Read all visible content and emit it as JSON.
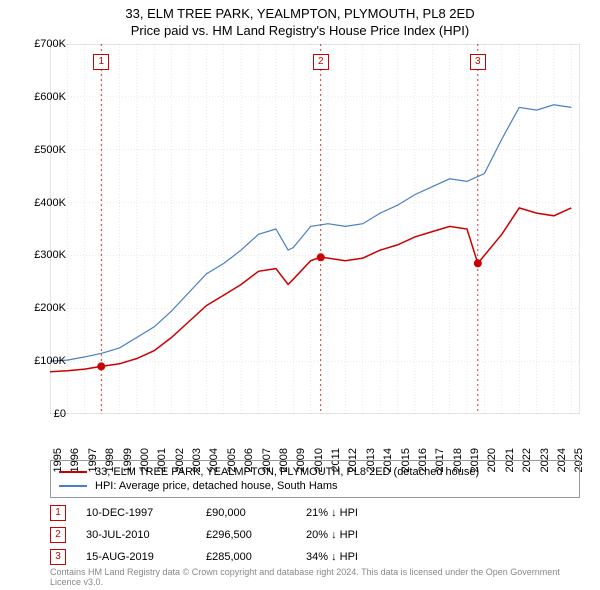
{
  "title": {
    "line1": "33, ELM TREE PARK, YEALMPTON, PLYMOUTH, PL8 2ED",
    "line2": "Price paid vs. HM Land Registry's House Price Index (HPI)"
  },
  "chart": {
    "type": "line",
    "background_color": "#ffffff",
    "grid_color": "#d0d0d0",
    "xlim": [
      1995,
      2025.5
    ],
    "ylim": [
      0,
      700000
    ],
    "ytick_step": 100000,
    "ytick_labels": [
      "£0",
      "£100K",
      "£200K",
      "£300K",
      "£400K",
      "£500K",
      "£600K",
      "£700K"
    ],
    "xtick_step": 1,
    "xtick_labels": [
      "1995",
      "1996",
      "1997",
      "1998",
      "1999",
      "2000",
      "2001",
      "2002",
      "2003",
      "2004",
      "2005",
      "2006",
      "2007",
      "2008",
      "2009",
      "2010",
      "2011",
      "2012",
      "2013",
      "2014",
      "2015",
      "2016",
      "2017",
      "2018",
      "2019",
      "2020",
      "2021",
      "2022",
      "2023",
      "2024",
      "2025"
    ],
    "series": [
      {
        "name": "property",
        "color": "#cc0000",
        "width": 1.5,
        "data": [
          [
            1995,
            80000
          ],
          [
            1996,
            82000
          ],
          [
            1997,
            85000
          ],
          [
            1997.95,
            90000
          ],
          [
            1999,
            95000
          ],
          [
            2000,
            105000
          ],
          [
            2001,
            120000
          ],
          [
            2002,
            145000
          ],
          [
            2003,
            175000
          ],
          [
            2004,
            205000
          ],
          [
            2005,
            225000
          ],
          [
            2006,
            245000
          ],
          [
            2007,
            270000
          ],
          [
            2008,
            275000
          ],
          [
            2008.7,
            245000
          ],
          [
            2009,
            255000
          ],
          [
            2010,
            290000
          ],
          [
            2010.58,
            296500
          ],
          [
            2011,
            295000
          ],
          [
            2012,
            290000
          ],
          [
            2013,
            295000
          ],
          [
            2014,
            310000
          ],
          [
            2015,
            320000
          ],
          [
            2016,
            335000
          ],
          [
            2017,
            345000
          ],
          [
            2018,
            355000
          ],
          [
            2019,
            350000
          ],
          [
            2019.62,
            285000
          ],
          [
            2020,
            300000
          ],
          [
            2021,
            340000
          ],
          [
            2022,
            390000
          ],
          [
            2023,
            380000
          ],
          [
            2024,
            375000
          ],
          [
            2025,
            390000
          ]
        ]
      },
      {
        "name": "hpi",
        "color": "#4a7ec8",
        "width": 1.2,
        "data": [
          [
            1995,
            100000
          ],
          [
            1996,
            102000
          ],
          [
            1997,
            108000
          ],
          [
            1998,
            115000
          ],
          [
            1999,
            125000
          ],
          [
            2000,
            145000
          ],
          [
            2001,
            165000
          ],
          [
            2002,
            195000
          ],
          [
            2003,
            230000
          ],
          [
            2004,
            265000
          ],
          [
            2005,
            285000
          ],
          [
            2006,
            310000
          ],
          [
            2007,
            340000
          ],
          [
            2008,
            350000
          ],
          [
            2008.7,
            310000
          ],
          [
            2009,
            315000
          ],
          [
            2010,
            355000
          ],
          [
            2011,
            360000
          ],
          [
            2012,
            355000
          ],
          [
            2013,
            360000
          ],
          [
            2014,
            380000
          ],
          [
            2015,
            395000
          ],
          [
            2016,
            415000
          ],
          [
            2017,
            430000
          ],
          [
            2018,
            445000
          ],
          [
            2019,
            440000
          ],
          [
            2020,
            455000
          ],
          [
            2021,
            520000
          ],
          [
            2022,
            580000
          ],
          [
            2023,
            575000
          ],
          [
            2024,
            585000
          ],
          [
            2025,
            580000
          ]
        ]
      }
    ],
    "vlines": [
      {
        "x": 1997.95,
        "label": "1",
        "color": "#cc0000"
      },
      {
        "x": 2010.58,
        "label": "2",
        "color": "#cc0000"
      },
      {
        "x": 2019.62,
        "label": "3",
        "color": "#cc0000"
      }
    ],
    "markers": [
      {
        "x": 1997.95,
        "y": 90000,
        "color": "#cc0000"
      },
      {
        "x": 2010.58,
        "y": 296500,
        "color": "#cc0000"
      },
      {
        "x": 2019.62,
        "y": 285000,
        "color": "#cc0000"
      }
    ]
  },
  "legend": {
    "items": [
      {
        "color": "#cc0000",
        "label": "33, ELM TREE PARK, YEALMPTON, PLYMOUTH, PL8 2ED (detached house)"
      },
      {
        "color": "#4a7ec8",
        "label": "HPI: Average price, detached house, South Hams"
      }
    ]
  },
  "events": [
    {
      "marker": "1",
      "date": "10-DEC-1997",
      "price": "£90,000",
      "hpi": "21% ↓ HPI"
    },
    {
      "marker": "2",
      "date": "30-JUL-2010",
      "price": "£296,500",
      "hpi": "20% ↓ HPI"
    },
    {
      "marker": "3",
      "date": "15-AUG-2019",
      "price": "£285,000",
      "hpi": "34% ↓ HPI"
    }
  ],
  "footnote": "Contains HM Land Registry data © Crown copyright and database right 2024. This data is licensed under the Open Government Licence v3.0."
}
